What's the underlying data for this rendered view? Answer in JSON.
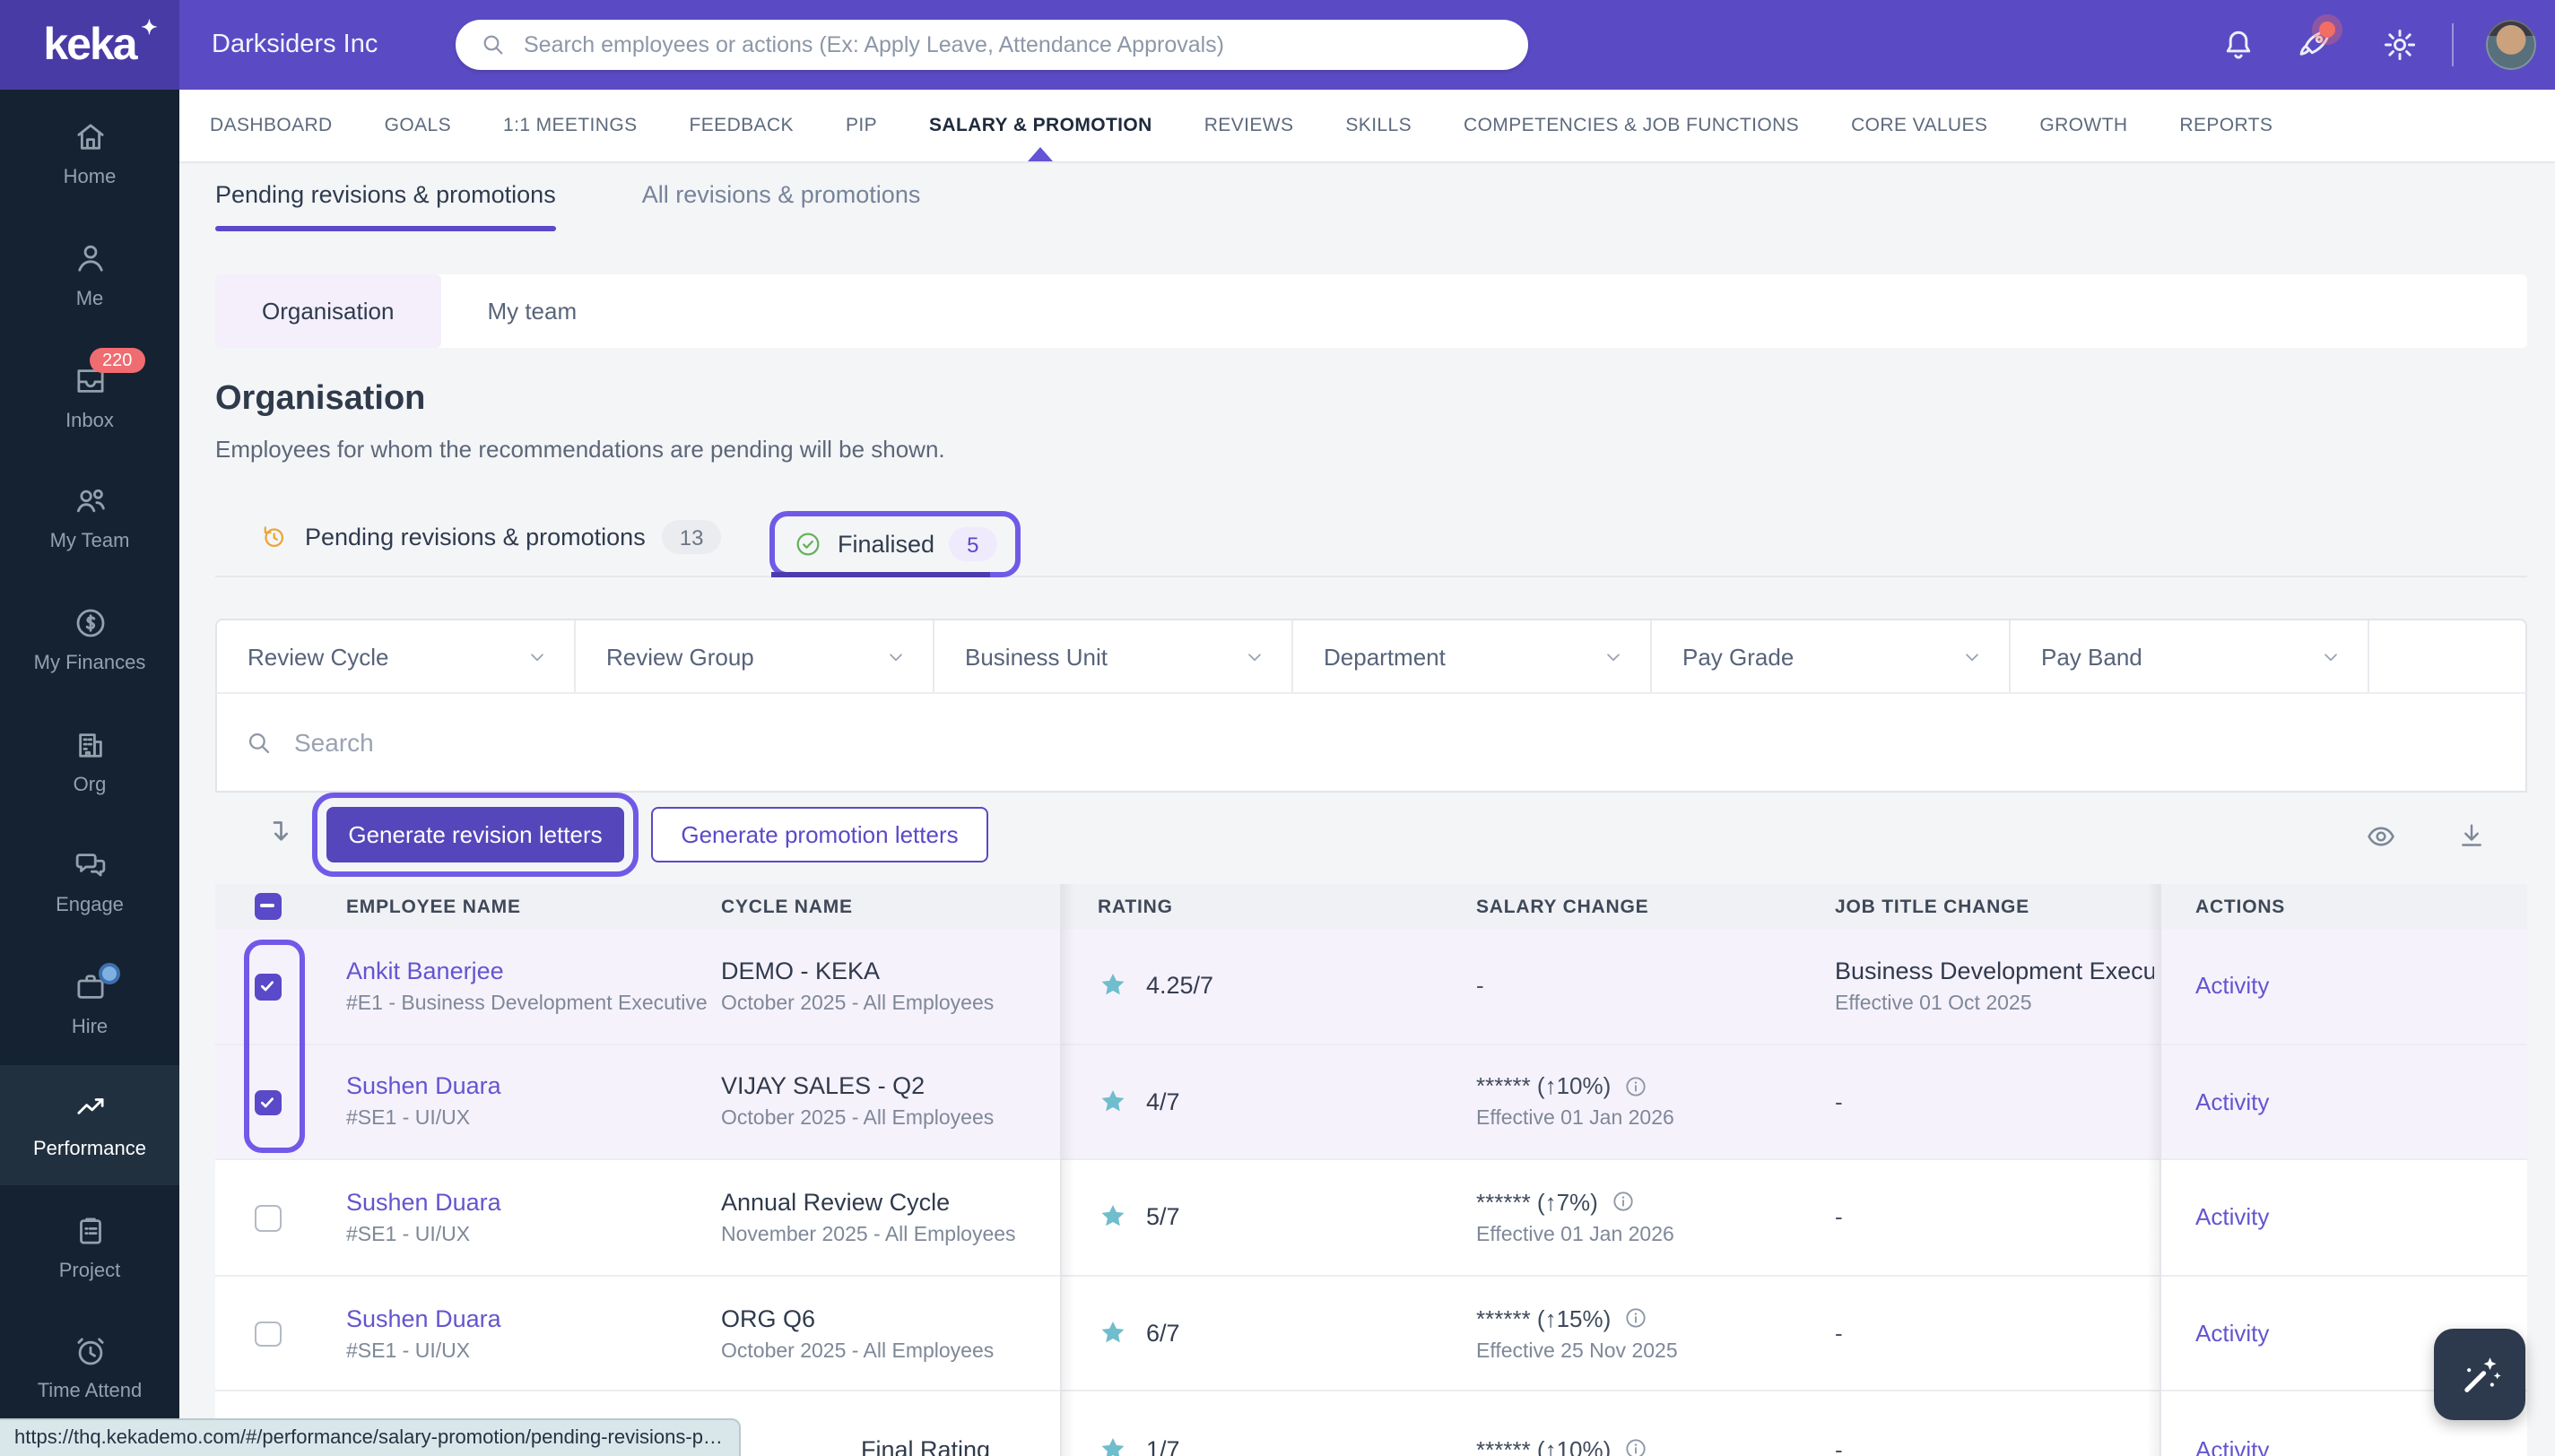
{
  "topbar": {
    "logo": "keka",
    "logo_star": "✦",
    "company": "Darksiders Inc",
    "search_placeholder": "Search employees or actions (Ex: Apply Leave, Attendance Approvals)"
  },
  "sidebar": {
    "items": [
      {
        "label": "Home",
        "icon": "home-icon"
      },
      {
        "label": "Me",
        "icon": "user-icon"
      },
      {
        "label": "Inbox",
        "icon": "inbox-icon",
        "badge": "220"
      },
      {
        "label": "My Team",
        "icon": "team-icon"
      },
      {
        "label": "My Finances",
        "icon": "finances-icon"
      },
      {
        "label": "Org",
        "icon": "org-icon"
      },
      {
        "label": "Engage",
        "icon": "engage-icon"
      },
      {
        "label": "Hire",
        "icon": "hire-icon",
        "dot": true
      },
      {
        "label": "Performance",
        "icon": "performance-icon",
        "active": true
      },
      {
        "label": "Project",
        "icon": "project-icon"
      },
      {
        "label": "Time Attend",
        "icon": "time-attend-icon"
      }
    ]
  },
  "nav": {
    "tabs": [
      {
        "label": "DASHBOARD"
      },
      {
        "label": "GOALS"
      },
      {
        "label": "1:1 MEETINGS"
      },
      {
        "label": "FEEDBACK"
      },
      {
        "label": "PIP"
      },
      {
        "label": "SALARY & PROMOTION",
        "active": true
      },
      {
        "label": "REVIEWS"
      },
      {
        "label": "SKILLS"
      },
      {
        "label": "COMPETENCIES & JOB FUNCTIONS"
      },
      {
        "label": "CORE VALUES"
      },
      {
        "label": "GROWTH"
      },
      {
        "label": "REPORTS"
      }
    ]
  },
  "subtabs": [
    {
      "label": "Pending revisions & promotions",
      "active": true
    },
    {
      "label": "All revisions & promotions"
    }
  ],
  "scope_tabs": [
    {
      "label": "Organisation",
      "active": true
    },
    {
      "label": "My team"
    }
  ],
  "page": {
    "title": "Organisation",
    "description": "Employees for whom the recommendations are pending will be shown."
  },
  "status_tabs": {
    "pending": {
      "label": "Pending revisions & promotions",
      "count": "13"
    },
    "finalised": {
      "label": "Finalised",
      "count": "5"
    }
  },
  "filters": [
    "Review Cycle",
    "Review Group",
    "Business Unit",
    "Department",
    "Pay Grade",
    "Pay Band"
  ],
  "table_search_placeholder": "Search",
  "toolbar": {
    "generate_revision": "Generate revision letters",
    "generate_promotion": "Generate promotion letters"
  },
  "table": {
    "columns": [
      "EMPLOYEE NAME",
      "CYCLE NAME",
      "RATING",
      "SALARY CHANGE",
      "JOB TITLE CHANGE",
      "ACTIONS"
    ],
    "rows": [
      {
        "employee": "Ankit Banerjee",
        "employee_meta": "#E1 - Business Development Executive",
        "cycle": "DEMO - KEKA",
        "cycle_meta": "October 2025 - All Employees",
        "rating": "4.25/7",
        "salary_change": "-",
        "salary_effective": "",
        "job_title": "Business Development Executiv",
        "job_effective": "Effective 01 Oct 2025",
        "action": "Activity",
        "checked": true,
        "selected": true
      },
      {
        "employee": "Sushen Duara",
        "employee_meta": "#SE1 - UI/UX",
        "cycle": "VIJAY SALES - Q2",
        "cycle_meta": "October 2025 - All Employees",
        "rating": "4/7",
        "salary_change": "****** (↑10%)",
        "salary_effective": "Effective 01 Jan 2026",
        "job_title": "-",
        "job_effective": "",
        "action": "Activity",
        "checked": true,
        "selected": true
      },
      {
        "employee": "Sushen Duara",
        "employee_meta": "#SE1 - UI/UX",
        "cycle": "Annual Review Cycle",
        "cycle_meta": "November 2025 - All Employees",
        "rating": "5/7",
        "salary_change": "****** (↑7%)",
        "salary_effective": "Effective 01 Jan 2026",
        "job_title": "-",
        "job_effective": "",
        "action": "Activity",
        "checked": false,
        "selected": false
      },
      {
        "employee": "Sushen Duara",
        "employee_meta": "#SE1 - UI/UX",
        "cycle": "ORG Q6",
        "cycle_meta": "October 2025 - All Employees",
        "rating": "6/7",
        "salary_change": "****** (↑15%)",
        "salary_effective": "Effective 25 Nov 2025",
        "job_title": "-",
        "job_effective": "",
        "action": "Activity",
        "checked": false,
        "selected": false
      },
      {
        "employee": "",
        "employee_meta": "",
        "cycle": "Final Rating",
        "cycle_meta": "",
        "rating": "1/7",
        "salary_change": "****** (↑10%)",
        "salary_effective": "",
        "job_title": "-",
        "job_effective": "",
        "action": "Activity",
        "checked": false,
        "selected": false,
        "partial": true
      }
    ]
  },
  "url_tooltip": "https://thq.kekademo.com/#/performance/salary-promotion/pending-revisions-p…",
  "colors": {
    "header_purple": "#5a4bc4",
    "accent_purple": "#5a49c8",
    "highlight_ring": "#7159e8",
    "star_teal": "#6fbdcd",
    "badge_red": "#ef6c70",
    "pending_clock_orange": "#e9a63b",
    "finalised_green": "#67b05b",
    "sidebar_navy": "#152231"
  }
}
